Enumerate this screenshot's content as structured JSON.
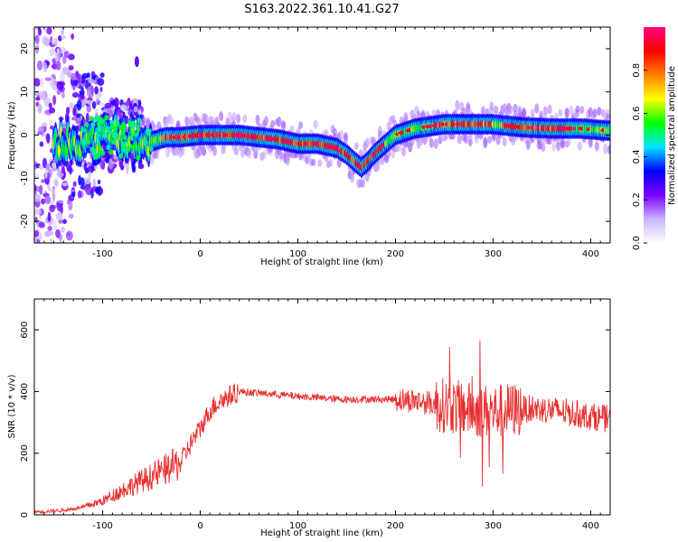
{
  "title": "S163.2022.361.10.41.G27",
  "chart_data": [
    {
      "type": "heatmap",
      "xlabel": "Height of straight line (km)",
      "ylabel": "Frequency (Hz)",
      "xlim": [
        -170,
        420
      ],
      "ylim": [
        -25,
        25
      ],
      "xticks": [
        -100,
        0,
        100,
        200,
        300,
        400
      ],
      "xtick_labels": [
        "-100",
        "0",
        "100",
        "200",
        "300",
        "400"
      ],
      "yticks": [
        -20,
        -10,
        0,
        10,
        20
      ],
      "ytick_labels": [
        "-20",
        "-10",
        "0",
        "10",
        "20"
      ],
      "colorbar": {
        "label": "Normalized spectral amplitude",
        "range": [
          0,
          1
        ],
        "ticks": [
          0,
          0.2,
          0.4,
          0.6,
          0.8
        ],
        "tick_labels": [
          "0.0",
          "0.2",
          "0.4",
          "0.6",
          "0.8"
        ],
        "colormap": [
          "#ffffff",
          "#c9b3ff",
          "#7a00ff",
          "#0000ff",
          "#00e5ff",
          "#00ff00",
          "#ffff00",
          "#ff8000",
          "#ff0000",
          "#ff0080"
        ]
      },
      "ridge": {
        "x": [
          -150,
          -120,
          -90,
          -60,
          -50,
          -35,
          -20,
          0,
          20,
          40,
          60,
          80,
          100,
          120,
          140,
          150,
          160,
          165,
          170,
          180,
          200,
          220,
          250,
          280,
          300,
          330,
          360,
          390,
          420
        ],
        "y": [
          -2,
          -1.5,
          0,
          -1,
          -1.5,
          -0.5,
          -0.5,
          0,
          0,
          0,
          -0.5,
          -1,
          -2,
          -2,
          -3,
          -4.5,
          -6.5,
          -7.5,
          -6.5,
          -4,
          0,
          1.5,
          2.5,
          2.5,
          2.5,
          1.8,
          1.5,
          1.5,
          1
        ]
      }
    },
    {
      "type": "line",
      "xlabel": "Height of straight line (km)",
      "ylabel": "SNR (10 * v/v)",
      "xlim": [
        -170,
        420
      ],
      "ylim": [
        0,
        700
      ],
      "xticks": [
        -100,
        0,
        100,
        200,
        300,
        400
      ],
      "xtick_labels": [
        "-100",
        "0",
        "100",
        "200",
        "300",
        "400"
      ],
      "yticks": [
        0,
        200,
        400,
        600
      ],
      "ytick_labels": [
        "0",
        "200",
        "400",
        "600"
      ],
      "color": "#e83030",
      "series": [
        {
          "x": [
            -170,
            -140,
            -120,
            -100,
            -80,
            -60,
            -40,
            -20,
            -10,
            0,
            10,
            20,
            40,
            60,
            80,
            100,
            120,
            140,
            160,
            180,
            200,
            220,
            240,
            260,
            280,
            300,
            320,
            340,
            360,
            380,
            400,
            420
          ],
          "values": [
            10,
            15,
            25,
            45,
            80,
            110,
            140,
            170,
            230,
            280,
            340,
            370,
            400,
            395,
            390,
            385,
            380,
            375,
            375,
            375,
            375,
            370,
            360,
            350,
            340,
            335,
            340,
            345,
            340,
            330,
            320,
            310
          ]
        }
      ]
    }
  ]
}
